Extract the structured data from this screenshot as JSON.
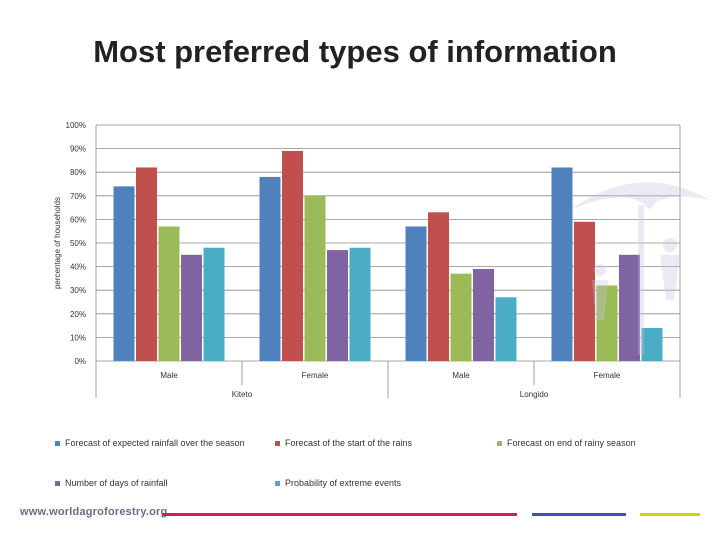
{
  "title": "Most preferred types of information",
  "footer": {
    "url": "www.worldagroforestry.org",
    "line_colors": [
      "#d81b60",
      "#3f51b5",
      "#c6d800"
    ]
  },
  "chart_data": {
    "type": "bar",
    "ylabel": "percentage of households",
    "ylim": [
      0,
      100
    ],
    "yticks": [
      "0%",
      "10%",
      "20%",
      "30%",
      "40%",
      "50%",
      "60%",
      "70%",
      "80%",
      "90%",
      "100%"
    ],
    "categories": [
      "Male",
      "Female",
      "Male",
      "Female"
    ],
    "groups": [
      {
        "label": "Kiteto",
        "categories": [
          "Male",
          "Female"
        ]
      },
      {
        "label": "Longido",
        "categories": [
          "Male",
          "Female"
        ]
      }
    ],
    "series": [
      {
        "name": "Forecast of expected rainfall over the season",
        "color": "#4f81bd",
        "values": [
          74,
          78,
          57,
          82
        ]
      },
      {
        "name": "Forecast of the start of the rains",
        "color": "#c0504d",
        "values": [
          82,
          89,
          63,
          59
        ]
      },
      {
        "name": "Forecast on end of rainy season",
        "color": "#9bbb59",
        "values": [
          57,
          70,
          37,
          32
        ]
      },
      {
        "name": "Number of days of rainfall",
        "color": "#8064a2",
        "values": [
          45,
          47,
          39,
          45
        ]
      },
      {
        "name": "Probability of extreme events",
        "color": "#4bacc6",
        "values": [
          48,
          48,
          27,
          14
        ]
      }
    ],
    "grid": true,
    "legend_position": "bottom"
  }
}
